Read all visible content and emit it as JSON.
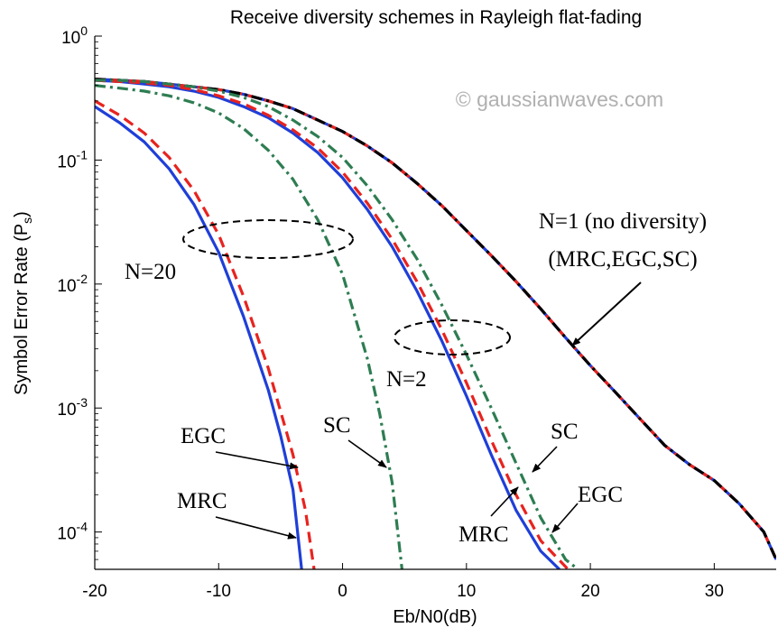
{
  "chart_data": {
    "type": "line",
    "title": "Receive diversity schemes in Rayleigh flat-fading",
    "xlabel": "Eb/N0(dB)",
    "ylabel": "Symbol Error Rate (P",
    "ylabel_sub": "s",
    "ylabel_close": ")",
    "xlim": [
      -20,
      35
    ],
    "ylim": [
      5e-05,
      1
    ],
    "yscale": "log",
    "grid": false,
    "x_ticks": [
      -20,
      -10,
      0,
      10,
      20,
      30
    ],
    "x_tick_labels": [
      "-20",
      "-10",
      "0",
      "10",
      "20",
      "30"
    ],
    "y_ticks": [
      1,
      0.1,
      0.01,
      0.001,
      0.0001
    ],
    "y_tick_bases": [
      "10",
      "10",
      "10",
      "10",
      "10"
    ],
    "y_tick_exps": [
      "0",
      "-1",
      "-2",
      "-3",
      "-4"
    ],
    "series": [
      {
        "name": "N=1 MRC",
        "color": "#1f3fd8",
        "style": "solid",
        "x": [
          -20,
          -18,
          -16,
          -14,
          -12,
          -10,
          -8,
          -6,
          -4,
          -2,
          0,
          2,
          4,
          6,
          8,
          10,
          12,
          14,
          16,
          18,
          20,
          22,
          24,
          26,
          28,
          30,
          32,
          34,
          35
        ],
        "y": [
          0.45,
          0.44,
          0.43,
          0.41,
          0.39,
          0.37,
          0.34,
          0.3,
          0.26,
          0.21,
          0.17,
          0.13,
          0.095,
          0.065,
          0.043,
          0.027,
          0.017,
          0.0105,
          0.0063,
          0.0037,
          0.0022,
          0.00135,
          0.00082,
          0.0005,
          0.00035,
          0.00026,
          0.00017,
          0.0001,
          6e-05
        ]
      },
      {
        "name": "N=1 EGC",
        "color": "#e8231f",
        "style": "dash",
        "x": [
          -20,
          -18,
          -16,
          -14,
          -12,
          -10,
          -8,
          -6,
          -4,
          -2,
          0,
          2,
          4,
          6,
          8,
          10,
          12,
          14,
          16,
          18,
          20,
          22,
          24,
          26,
          28,
          30,
          32,
          34,
          35
        ],
        "y": [
          0.45,
          0.44,
          0.43,
          0.41,
          0.39,
          0.37,
          0.34,
          0.3,
          0.26,
          0.21,
          0.17,
          0.13,
          0.095,
          0.065,
          0.043,
          0.027,
          0.017,
          0.0105,
          0.0063,
          0.0037,
          0.0022,
          0.00135,
          0.00082,
          0.0005,
          0.00035,
          0.00026,
          0.00017,
          0.0001,
          6e-05
        ]
      },
      {
        "name": "N=1 SC",
        "color": "#000000",
        "style": "dashdot",
        "x": [
          -20,
          -18,
          -16,
          -14,
          -12,
          -10,
          -8,
          -6,
          -4,
          -2,
          0,
          2,
          4,
          6,
          8,
          10,
          12,
          14,
          16,
          18,
          20,
          22,
          24,
          26,
          28,
          30,
          32,
          34,
          35
        ],
        "y": [
          0.45,
          0.44,
          0.43,
          0.41,
          0.39,
          0.37,
          0.34,
          0.3,
          0.26,
          0.21,
          0.17,
          0.13,
          0.095,
          0.065,
          0.043,
          0.027,
          0.017,
          0.0105,
          0.0063,
          0.0037,
          0.0022,
          0.00135,
          0.00082,
          0.0005,
          0.00035,
          0.00026,
          0.00017,
          0.0001,
          6e-05
        ]
      },
      {
        "name": "N=2 MRC",
        "color": "#1f3fd8",
        "style": "solid",
        "x": [
          -20,
          -18,
          -16,
          -14,
          -12,
          -10,
          -8,
          -6,
          -4,
          -2,
          0,
          2,
          4,
          6,
          8,
          10,
          12,
          14,
          16,
          17.5
        ],
        "y": [
          0.44,
          0.43,
          0.41,
          0.39,
          0.36,
          0.32,
          0.27,
          0.22,
          0.165,
          0.115,
          0.072,
          0.04,
          0.02,
          0.0088,
          0.0035,
          0.00125,
          0.00042,
          0.00015,
          7e-05,
          5e-05
        ]
      },
      {
        "name": "N=2 EGC",
        "color": "#e8231f",
        "style": "dash",
        "x": [
          -20,
          -18,
          -16,
          -14,
          -12,
          -10,
          -8,
          -6,
          -4,
          -2,
          0,
          2,
          4,
          6,
          8,
          10,
          12,
          14,
          16,
          18.2
        ],
        "y": [
          0.44,
          0.43,
          0.42,
          0.4,
          0.37,
          0.33,
          0.285,
          0.23,
          0.175,
          0.125,
          0.08,
          0.045,
          0.023,
          0.0105,
          0.0043,
          0.0016,
          0.00055,
          0.0002,
          8.5e-05,
          5e-05
        ]
      },
      {
        "name": "N=2 SC",
        "color": "#2e7d52",
        "style": "dashdot",
        "x": [
          -20,
          -18,
          -16,
          -14,
          -12,
          -10,
          -8,
          -6,
          -4,
          -2,
          0,
          2,
          4,
          6,
          8,
          10,
          12,
          14,
          16,
          18,
          19
        ],
        "y": [
          0.44,
          0.44,
          0.43,
          0.41,
          0.39,
          0.36,
          0.32,
          0.27,
          0.21,
          0.155,
          0.105,
          0.062,
          0.033,
          0.016,
          0.0068,
          0.0027,
          0.001,
          0.00036,
          0.00013,
          6e-05,
          5e-05
        ]
      },
      {
        "name": "N=20 MRC",
        "color": "#1f3fd8",
        "style": "solid",
        "x": [
          -20,
          -18,
          -16,
          -14,
          -12,
          -10,
          -8,
          -6,
          -5,
          -4,
          -3.3
        ],
        "y": [
          0.27,
          0.2,
          0.14,
          0.085,
          0.044,
          0.018,
          0.0055,
          0.0014,
          0.0006,
          0.00022,
          5e-05
        ]
      },
      {
        "name": "N=20 EGC",
        "color": "#e8231f",
        "style": "dash",
        "x": [
          -20,
          -18,
          -16,
          -14,
          -12,
          -10,
          -8,
          -6,
          -4,
          -3,
          -2.3
        ],
        "y": [
          0.3,
          0.23,
          0.165,
          0.105,
          0.057,
          0.025,
          0.008,
          0.0021,
          0.00042,
          0.00015,
          5e-05
        ]
      },
      {
        "name": "N=20 SC",
        "color": "#2e7d52",
        "style": "dashdot",
        "x": [
          -20,
          -18,
          -16,
          -14,
          -12,
          -10,
          -8,
          -6,
          -4,
          -2,
          0,
          2,
          3,
          4,
          4.8
        ],
        "y": [
          0.4,
          0.38,
          0.36,
          0.33,
          0.29,
          0.24,
          0.18,
          0.12,
          0.07,
          0.033,
          0.012,
          0.0025,
          0.0009,
          0.00025,
          5e-05
        ]
      }
    ],
    "annotations": {
      "n1_line1": "N=1 (no diversity)",
      "n1_line2": "(MRC,EGC,SC)",
      "n20": "N=20",
      "n2": "N=2",
      "egc_left": "EGC",
      "mrc_left": "MRC",
      "sc_mid": "SC",
      "sc_right": "SC",
      "egc_right": "EGC",
      "mrc_right": "MRC",
      "watermark": "© gaussianwaves.com"
    }
  }
}
